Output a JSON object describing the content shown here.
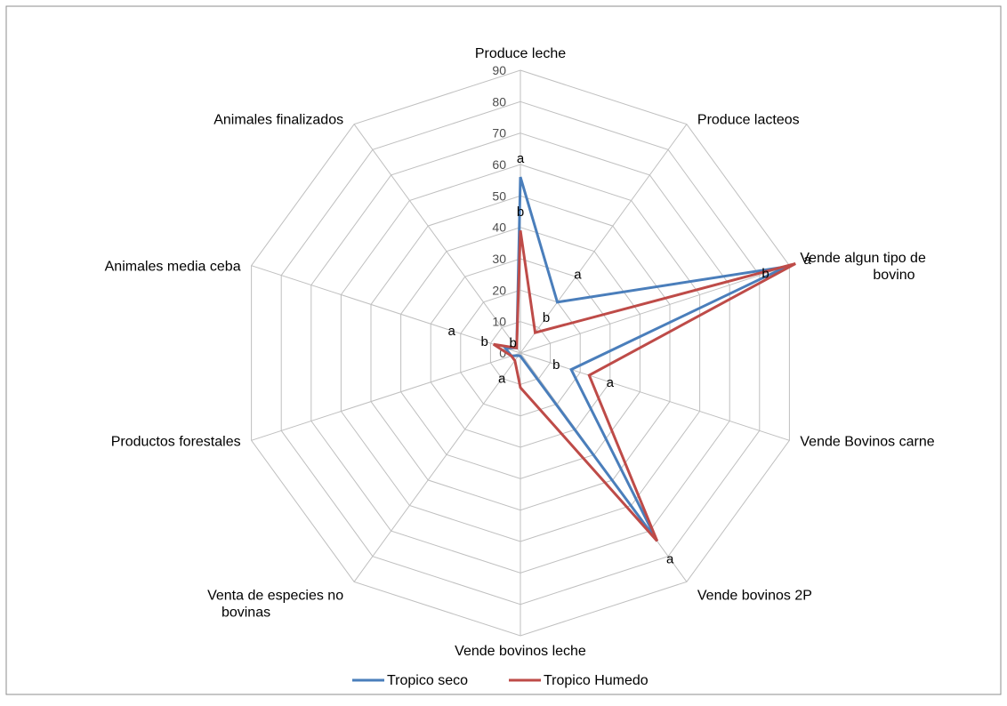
{
  "chart_data": {
    "type": "radar",
    "title": "",
    "categories": [
      "Produce leche",
      "Produce lacteos",
      "Vende algun tipo de bovino",
      "Vende Bovinos carne",
      "Vende bovinos 2P",
      "Vende bovinos leche",
      "Venta de especies no bovinas",
      "Productos forestales",
      "Animales media ceba",
      "Animales finalizados"
    ],
    "category_label_lines": [
      [
        "Produce leche"
      ],
      [
        "Produce lacteos"
      ],
      [
        "Vende algun tipo de",
        "bovino"
      ],
      [
        "Vende Bovinos carne"
      ],
      [
        "Vende bovinos 2P"
      ],
      [
        "Vende bovinos leche"
      ],
      [
        "Venta de especies no",
        "bovinas"
      ],
      [
        "Productos forestales"
      ],
      [
        "Animales media ceba"
      ],
      [
        "Animales finalizados"
      ]
    ],
    "axis": {
      "min": 0,
      "max": 90,
      "step": 10,
      "ticks": [
        "0",
        "10",
        "20",
        "30",
        "40",
        "50",
        "60",
        "70",
        "80",
        "90"
      ]
    },
    "grid": true,
    "legend_position": "bottom",
    "series": [
      {
        "name": "Tropico seco",
        "color": "#4a7ebb",
        "values": [
          56,
          20,
          89,
          17,
          74,
          1,
          1,
          3,
          5,
          2
        ]
      },
      {
        "name": "Tropico Humedo",
        "color": "#be4b48",
        "values": [
          39,
          8,
          92,
          23,
          74,
          11,
          3,
          3,
          9,
          2
        ]
      }
    ],
    "significance_labels": [
      {
        "text": "a",
        "category": "Produce leche",
        "value": 62
      },
      {
        "text": "b",
        "category": "Produce leche",
        "value": 45
      },
      {
        "text": "a",
        "category": "Produce lacteos",
        "value": 31
      },
      {
        "text": "b",
        "category": "Produce lacteos",
        "value": 14
      },
      {
        "text": "a",
        "category": "Vende algun tipo de bovino",
        "value": 96
      },
      {
        "text": "b",
        "category": "Vende algun tipo de bovino",
        "value": 82
      },
      {
        "text": "a",
        "category": "Vende Bovinos carne",
        "value": 30
      },
      {
        "text": "b",
        "category": "Vende Bovinos carne",
        "value": 12
      },
      {
        "text": "a",
        "category": "Vende bovinos 2P",
        "value": 81
      },
      {
        "text": "b",
        "category": "Animales finalizados",
        "value": 4
      },
      {
        "text": "a",
        "category": "Venta de especies no bovinas",
        "value": 10
      },
      {
        "text": "a",
        "category": "Animales media ceba",
        "value": 23
      },
      {
        "text": "b",
        "category": "Animales media ceba",
        "value": 12
      }
    ]
  }
}
